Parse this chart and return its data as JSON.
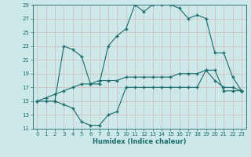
{
  "xlabel": "Humidex (Indice chaleur)",
  "ylabel": "",
  "xlim": [
    -0.5,
    23.5
  ],
  "ylim": [
    11,
    29
  ],
  "xticks": [
    0,
    1,
    2,
    3,
    4,
    5,
    6,
    7,
    8,
    9,
    10,
    11,
    12,
    13,
    14,
    15,
    16,
    17,
    18,
    19,
    20,
    21,
    22,
    23
  ],
  "yticks": [
    11,
    13,
    15,
    17,
    19,
    21,
    23,
    25,
    27,
    29
  ],
  "background_color": "#cce8e8",
  "line_color": "#1a6b6b",
  "grid_color": "#b8d8d8",
  "lines": [
    {
      "x": [
        0,
        1,
        2,
        3,
        4,
        5,
        6,
        7,
        8,
        9,
        10,
        11,
        12,
        13,
        14,
        15,
        16,
        17,
        18,
        19,
        20,
        21,
        22,
        23
      ],
      "y": [
        15,
        15.5,
        16,
        16.5,
        17,
        17.5,
        17.5,
        18,
        18,
        18,
        18.5,
        18.5,
        18.5,
        18.5,
        18.5,
        18.5,
        19,
        19,
        19,
        19.5,
        19.5,
        16.5,
        16.5,
        16.5
      ]
    },
    {
      "x": [
        0,
        1,
        2,
        3,
        4,
        5,
        6,
        7,
        8,
        9,
        10,
        11,
        12,
        13,
        14,
        15,
        16,
        17,
        18,
        19,
        20,
        21,
        22,
        23
      ],
      "y": [
        15,
        15,
        15,
        14.5,
        14,
        12,
        11.5,
        11.5,
        13,
        13.5,
        17,
        17,
        17,
        17,
        17,
        17,
        17,
        17,
        17,
        19.5,
        18,
        17,
        17,
        16.5
      ]
    },
    {
      "x": [
        2,
        3,
        4,
        5,
        6,
        7,
        8,
        9,
        10,
        11,
        12,
        13,
        14,
        15,
        16,
        17,
        18,
        19,
        20,
        21,
        22,
        23
      ],
      "y": [
        15,
        23,
        22.5,
        21.5,
        17.5,
        17.5,
        23,
        24.5,
        25.5,
        29,
        28,
        29,
        29,
        29,
        28.5,
        27,
        27.5,
        27,
        22,
        22,
        18.5,
        16.5
      ]
    }
  ]
}
